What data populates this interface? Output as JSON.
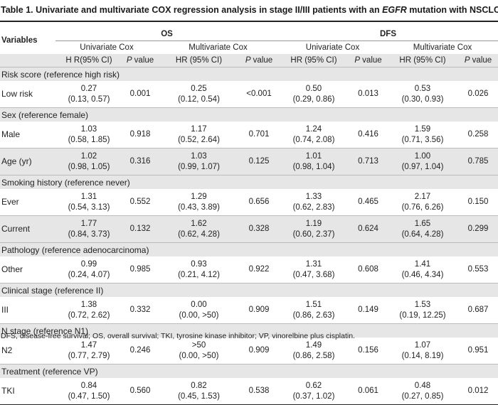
{
  "title": {
    "prefix": "Table 1. Univariate and multivariate COX regression analysis in stage II/III patients with an ",
    "gene": "EGFR",
    "suffix": " mutation with NSCLC"
  },
  "headers": {
    "variables": "Variables",
    "os": "OS",
    "dfs": "DFS",
    "univariate": "Univariate Cox",
    "multivariate": "Multivariate Cox",
    "hr_uni_os": "H R(95% CI)",
    "hr": "HR (95% CI)",
    "p_value": "P value"
  },
  "sections": [
    {
      "title": "Risk score (reference high risk)",
      "rows": [
        {
          "label": "Low risk",
          "cells": [
            [
              "0.27",
              "(0.13, 0.57)"
            ],
            [
              "0.001"
            ],
            [
              "0.25",
              "(0.12, 0.54)"
            ],
            [
              "<0.001"
            ],
            [
              "0.50",
              "(0.29, 0.86)"
            ],
            [
              "0.013"
            ],
            [
              "0.53",
              "(0.30, 0.93)"
            ],
            [
              "0.026"
            ]
          ]
        }
      ]
    },
    {
      "title": "Sex (reference female)",
      "rows": [
        {
          "label": "Male",
          "cells": [
            [
              "1.03",
              "(0.58, 1.85)"
            ],
            [
              "0.918"
            ],
            [
              "1.17",
              "(0.52, 2.64)"
            ],
            [
              "0.701"
            ],
            [
              "1.24",
              "(0.74, 2.08)"
            ],
            [
              "0.416"
            ],
            [
              "1.59",
              "(0.71, 3.56)"
            ],
            [
              "0.258"
            ]
          ]
        },
        {
          "label": "Age (yr)",
          "cells": [
            [
              "1.02",
              "(0.98, 1.05)"
            ],
            [
              "0.316"
            ],
            [
              "1.03",
              "(0.99, 1.07)"
            ],
            [
              "0.125"
            ],
            [
              "1.01",
              "(0.98, 1.04)"
            ],
            [
              "0.713"
            ],
            [
              "1.00",
              "(0.97, 1.04)"
            ],
            [
              "0.785"
            ]
          ]
        }
      ]
    },
    {
      "title": "Smoking history (reference never)",
      "rows": [
        {
          "label": "Ever",
          "cells": [
            [
              "1.31",
              "(0.54, 3.13)"
            ],
            [
              "0.552"
            ],
            [
              "1.29",
              "(0.43, 3.89)"
            ],
            [
              "0.656"
            ],
            [
              "1.33",
              "(0.62, 2.83)"
            ],
            [
              "0.465"
            ],
            [
              "2.17",
              "(0.76, 6.26)"
            ],
            [
              "0.150"
            ]
          ]
        },
        {
          "label": "Current",
          "cells": [
            [
              "1.77",
              "(0.84, 3.73)"
            ],
            [
              "0.132"
            ],
            [
              "1.62",
              "(0.62, 4.28)"
            ],
            [
              "0.328"
            ],
            [
              "1.19",
              "(0.60, 2.37)"
            ],
            [
              "0.624"
            ],
            [
              "1.65",
              "(0.64, 4.28)"
            ],
            [
              "0.299"
            ]
          ]
        }
      ]
    },
    {
      "title": "Pathology (reference adenocarcinoma)",
      "rows": [
        {
          "label": "Other",
          "cells": [
            [
              "0.99",
              "(0.24, 4.07)"
            ],
            [
              "0.985"
            ],
            [
              "0.93",
              "(0.21, 4.12)"
            ],
            [
              "0.922"
            ],
            [
              "1.31",
              "(0.47, 3.68)"
            ],
            [
              "0.608"
            ],
            [
              "1.41",
              "(0.46, 4.34)"
            ],
            [
              "0.553"
            ]
          ]
        }
      ]
    },
    {
      "title": "Clinical stage (reference II)",
      "rows": [
        {
          "label": "III",
          "cells": [
            [
              "1.38",
              "(0.72, 2.62)"
            ],
            [
              "0.332"
            ],
            [
              "0.00",
              "(0.00, >50)"
            ],
            [
              "0.909"
            ],
            [
              "1.51",
              "(0.86, 2.63)"
            ],
            [
              "0.149"
            ],
            [
              "1.53",
              "(0.19, 12.25)"
            ],
            [
              "0.687"
            ]
          ]
        }
      ]
    },
    {
      "title": "N stage (reference N1)",
      "rows": [
        {
          "label": "N2",
          "cells": [
            [
              "1.47",
              "(0.77, 2.79)"
            ],
            [
              "0.246"
            ],
            [
              ">50",
              "(0.00, >50)"
            ],
            [
              "0.909"
            ],
            [
              "1.49",
              "(0.86, 2.58)"
            ],
            [
              "0.156"
            ],
            [
              "1.07",
              "(0.14, 8.19)"
            ],
            [
              "0.951"
            ]
          ]
        }
      ]
    },
    {
      "title": "Treatment (reference VP)",
      "rows": [
        {
          "label": "TKI",
          "cells": [
            [
              "0.84",
              "(0.47, 1.50)"
            ],
            [
              "0.560"
            ],
            [
              "0.82",
              "(0.45, 1.53)"
            ],
            [
              "0.538"
            ],
            [
              "0.62",
              "(0.37, 1.02)"
            ],
            [
              "0.061"
            ],
            [
              "0.48",
              "(0.27, 0.85)"
            ],
            [
              "0.012"
            ]
          ]
        }
      ]
    }
  ],
  "footnote": "DFS, disease-free survival; OS, overall survival; TKI, tyrosine kinase inhibitor; VP, vinorelbine plus cisplatin."
}
